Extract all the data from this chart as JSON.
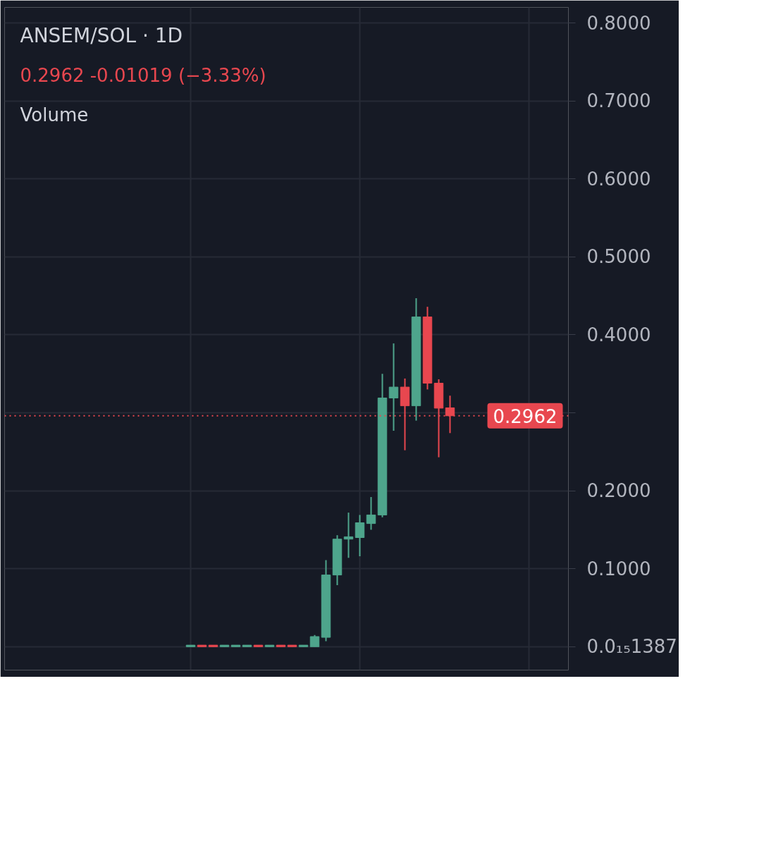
{
  "chart_data": {
    "type": "candlestick",
    "title": "ANSEM/SOL · 1D",
    "subtitle": "0.2962  -0.01019 (−3.33%)",
    "annotations": [
      "Volume"
    ],
    "categories": [
      null,
      null,
      null,
      null,
      null,
      null,
      null,
      null,
      null,
      null,
      null,
      null,
      null,
      null,
      null,
      null,
      null,
      null,
      null,
      null,
      null,
      null,
      null,
      null,
      null,
      null,
      null,
      null,
      null,
      null,
      null,
      null,
      null,
      null,
      null,
      null,
      null,
      null,
      null,
      null,
      null,
      null,
      null,
      null,
      null,
      null,
      null,
      null,
      null,
      null
    ],
    "ohlc": [
      null,
      null,
      null,
      null,
      null,
      null,
      null,
      null,
      null,
      null,
      null,
      null,
      null,
      null,
      null,
      null,
      [
        0,
        0.002,
        0,
        0.002
      ],
      [
        0.002,
        0.002,
        0,
        0
      ],
      [
        0.002,
        0.002,
        0,
        0
      ],
      [
        0,
        0.002,
        0,
        0.002
      ],
      [
        0,
        0.002,
        0,
        0.002
      ],
      [
        0,
        0.002,
        0,
        0.002
      ],
      [
        0.002,
        0.002,
        0,
        0
      ],
      [
        0,
        0.002,
        0,
        0.002
      ],
      [
        0.002,
        0.002,
        0,
        0
      ],
      [
        0.002,
        0.002,
        0,
        0
      ],
      [
        0,
        0.002,
        0,
        0.002
      ],
      [
        0,
        0.015,
        0,
        0.013
      ],
      [
        0.012,
        0.111,
        0.007,
        0.092
      ],
      [
        0.092,
        0.143,
        0.079,
        0.138
      ],
      [
        0.138,
        0.172,
        0.114,
        0.141
      ],
      [
        0.14,
        0.169,
        0.116,
        0.159
      ],
      [
        0.158,
        0.192,
        0.15,
        0.169
      ],
      [
        0.169,
        0.35,
        0.166,
        0.319
      ],
      [
        0.319,
        0.389,
        0.277,
        0.333
      ],
      [
        0.333,
        0.344,
        0.252,
        0.309
      ],
      [
        0.309,
        0.447,
        0.29,
        0.423
      ],
      [
        0.423,
        0.436,
        0.33,
        0.338
      ],
      [
        0.338,
        0.343,
        0.243,
        0.306
      ],
      [
        0.3064,
        0.322,
        0.274,
        0.2962
      ],
      null,
      null,
      null,
      null,
      null,
      null,
      null,
      null,
      null,
      null
    ],
    "colors": [
      null,
      null,
      null,
      null,
      null,
      null,
      null,
      null,
      null,
      null,
      null,
      null,
      null,
      null,
      null,
      null,
      "#4ea58c",
      "#e8474f",
      "#e8474f",
      "#4ea58c",
      "#4ea58c",
      "#4ea58c",
      "#e8474f",
      "#4ea58c",
      "#e8474f",
      "#e8474f",
      "#4ea58c",
      "#4ea58c",
      "#4ea58c",
      "#4ea58c",
      "#4ea58c",
      "#4ea58c",
      "#4ea58c",
      "#4ea58c",
      "#4ea58c",
      "#e8474f",
      "#4ea58c",
      "#e8474f",
      "#e8474f",
      "#e8474f",
      null,
      null,
      null,
      null,
      null,
      null,
      null,
      null,
      null,
      null
    ],
    "ylim": [
      -0.03,
      0.82
    ],
    "yticks": [
      {
        "value": 1.387e-16,
        "label": "0.0₁₅1387"
      },
      {
        "value": 0.1,
        "label": "0.1000"
      },
      {
        "value": 0.2,
        "label": "0.2000"
      },
      {
        "value": 0.3,
        "label": null
      },
      {
        "value": 0.4,
        "label": "0.4000"
      },
      {
        "value": 0.5,
        "label": "0.5000"
      },
      {
        "value": 0.6,
        "label": "0.6000"
      },
      {
        "value": 0.7,
        "label": "0.7000"
      },
      {
        "value": 0.8,
        "label": "0.8000"
      }
    ],
    "ref_lines": [
      {
        "axis": "y",
        "value": 0.2962,
        "label": "0.2962",
        "color": "#e8474f",
        "line_style": "dotted"
      }
    ],
    "grid": true,
    "tick_labels": "y"
  }
}
